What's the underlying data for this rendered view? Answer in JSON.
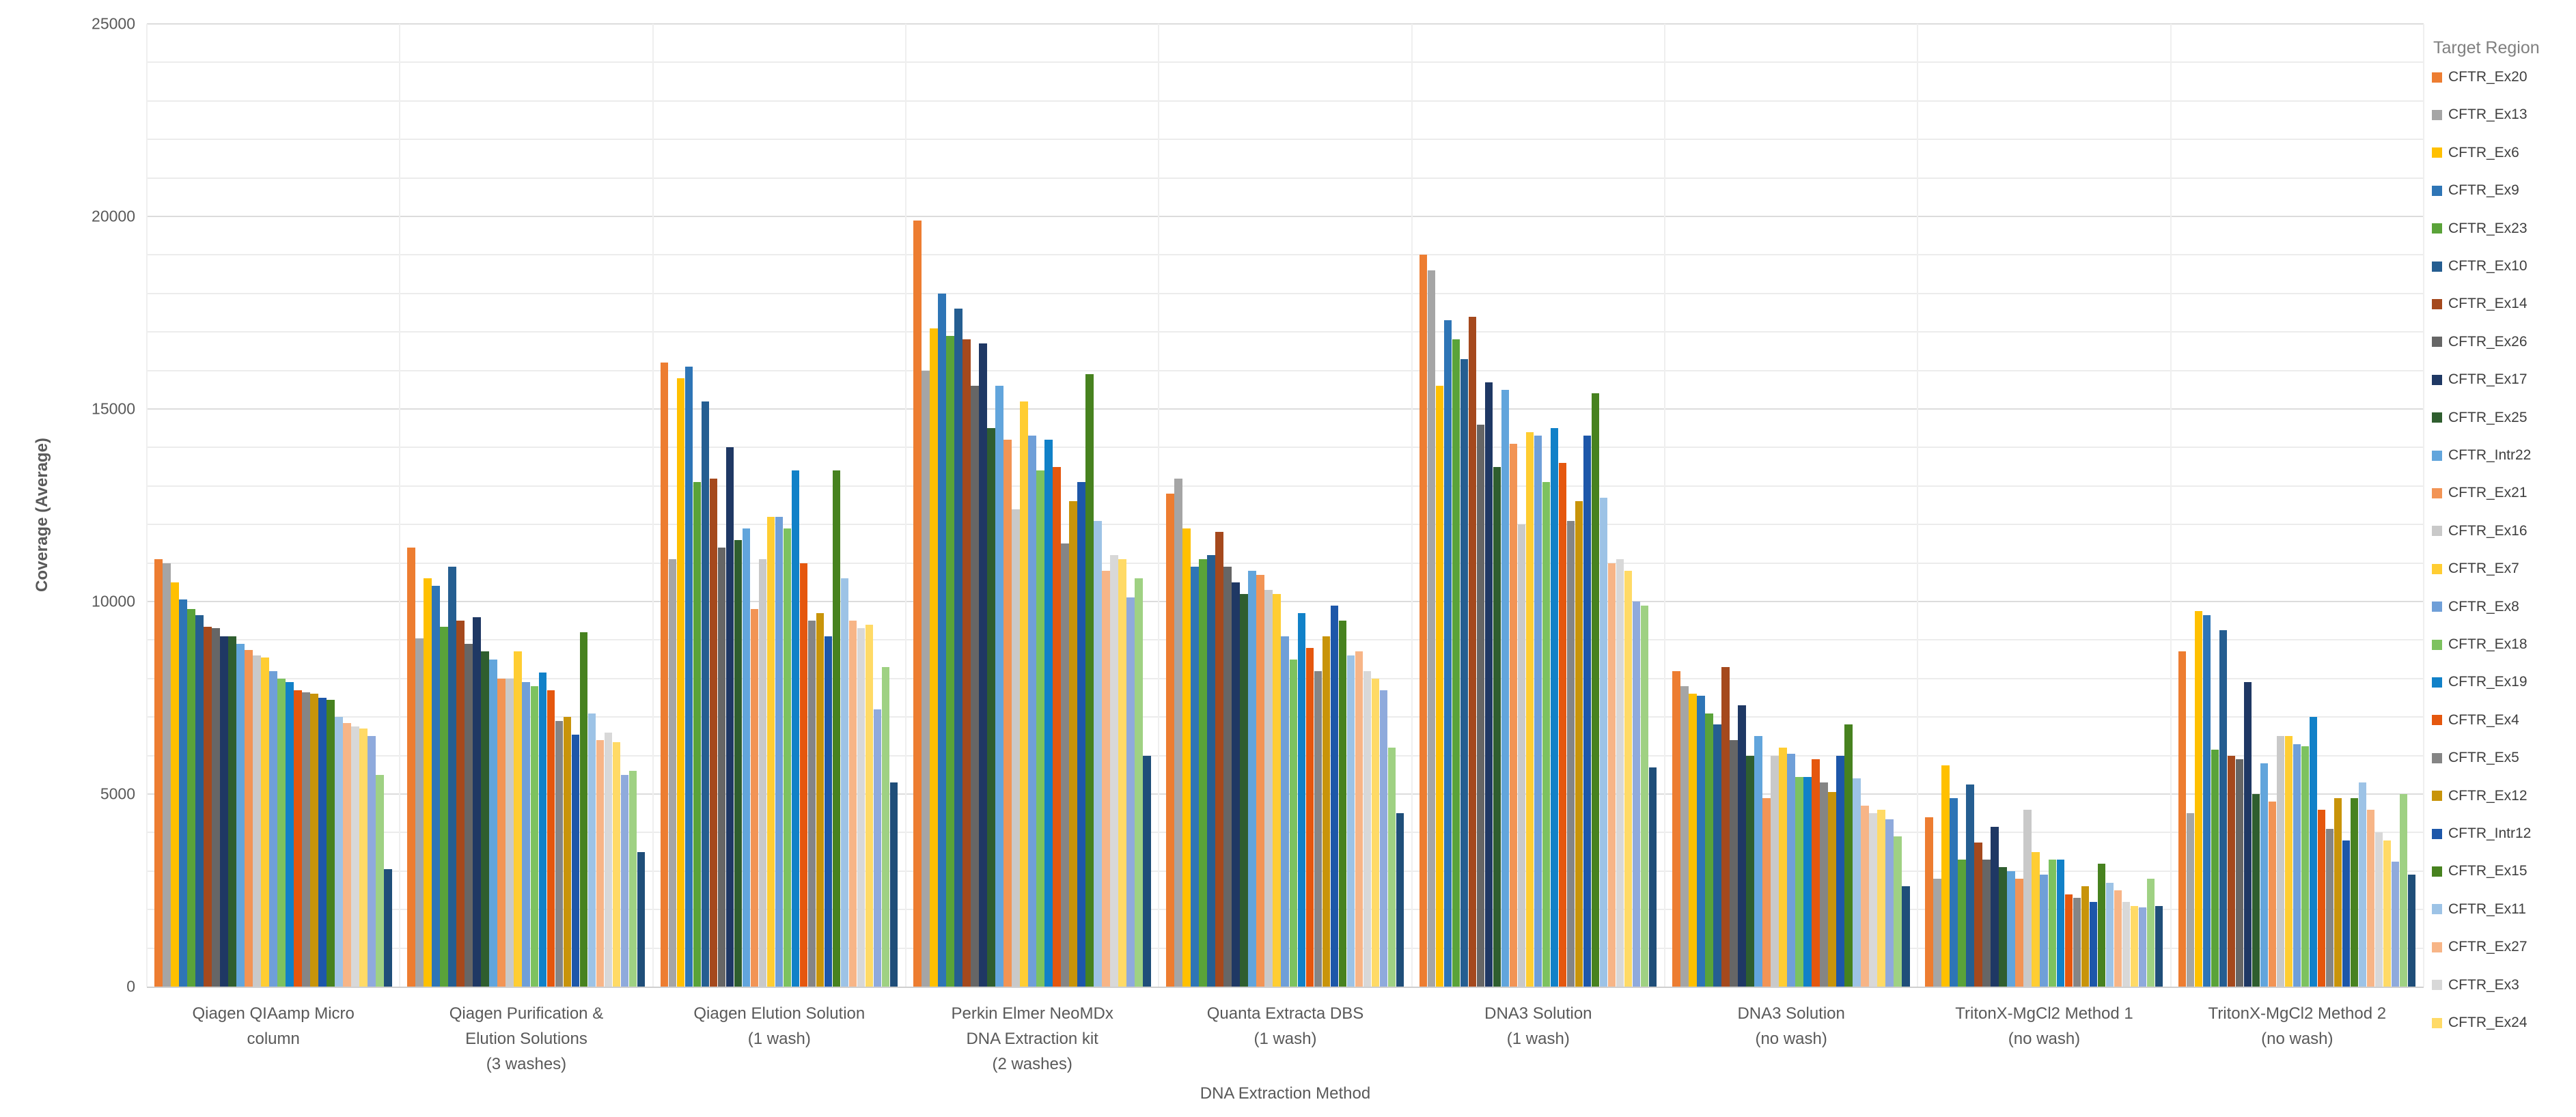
{
  "chart_data": {
    "type": "bar",
    "title": "",
    "xlabel": "DNA Extraction Method",
    "ylabel": "Coverage (Average)",
    "ylim": [
      0,
      25000
    ],
    "y_ticks": [
      0,
      5000,
      10000,
      15000,
      20000,
      25000
    ],
    "minor_grid_step": 1000,
    "grid": "horizontal minor gridlines every 1000, faint vertical lines at category boundaries",
    "legend_title": "Target Region",
    "legend_position": "right",
    "categories": [
      "Qiagen QIAamp Micro\ncolumn",
      "Qiagen Purification &\nElution Solutions\n(3 washes)",
      "Qiagen Elution Solution\n(1 wash)",
      "Perkin Elmer NeoMDx\nDNA Extraction kit\n(2 washes)",
      "Quanta Extracta DBS\n(1 wash)",
      "DNA3 Solution\n(1 wash)",
      "DNA3 Solution\n(no wash)",
      "TritonX-MgCl2 Method 1\n(no wash)",
      "TritonX-MgCl2 Method 2\n(no wash)"
    ],
    "series": [
      {
        "name": "CFTR_Ex20",
        "color": "#ED7D31",
        "in_legend": true,
        "values": [
          11100,
          11400,
          16200,
          19900,
          12800,
          19000,
          8200,
          4400,
          8700
        ]
      },
      {
        "name": "CFTR_Ex13",
        "color": "#A5A5A5",
        "in_legend": true,
        "values": [
          11000,
          9050,
          11100,
          16000,
          13200,
          18600,
          7800,
          2800,
          4500
        ]
      },
      {
        "name": "CFTR_Ex6",
        "color": "#FFC000",
        "in_legend": true,
        "values": [
          10500,
          10600,
          15800,
          17100,
          11900,
          15600,
          7600,
          5750,
          9750
        ]
      },
      {
        "name": "CFTR_Ex9",
        "color": "#2E75B6",
        "in_legend": true,
        "values": [
          10050,
          10400,
          16100,
          18000,
          10900,
          17300,
          7550,
          4900,
          9650
        ]
      },
      {
        "name": "CFTR_Ex23",
        "color": "#5AA339",
        "in_legend": true,
        "values": [
          9800,
          9350,
          13100,
          16900,
          11100,
          16800,
          7100,
          3300,
          6150
        ]
      },
      {
        "name": "CFTR_Ex10",
        "color": "#255E91",
        "in_legend": true,
        "values": [
          9650,
          10900,
          15200,
          17600,
          11200,
          16300,
          6800,
          5250,
          9250
        ]
      },
      {
        "name": "CFTR_Ex14",
        "color": "#A5491D",
        "in_legend": true,
        "values": [
          9350,
          9500,
          13200,
          16800,
          11800,
          17400,
          8300,
          3750,
          6000
        ]
      },
      {
        "name": "CFTR_Ex26",
        "color": "#666666",
        "in_legend": true,
        "values": [
          9300,
          8900,
          11400,
          15600,
          10900,
          14600,
          6400,
          3300,
          5900
        ]
      },
      {
        "name": "CFTR_Ex17",
        "color": "#1F3864",
        "in_legend": true,
        "values": [
          9100,
          9600,
          14000,
          16700,
          10500,
          15700,
          7300,
          4150,
          7900
        ]
      },
      {
        "name": "CFTR_Ex25",
        "color": "#2F5E2F",
        "in_legend": true,
        "values": [
          9100,
          8700,
          11600,
          14500,
          10200,
          13500,
          6000,
          3100,
          5000
        ]
      },
      {
        "name": "CFTR_Intr22",
        "color": "#62A5DC",
        "in_legend": true,
        "values": [
          8900,
          8500,
          11900,
          15600,
          10800,
          15500,
          6500,
          3000,
          5800
        ]
      },
      {
        "name": "CFTR_Ex21",
        "color": "#F29455",
        "in_legend": true,
        "values": [
          8750,
          8000,
          9800,
          14200,
          10700,
          14100,
          4900,
          2800,
          4800
        ]
      },
      {
        "name": "CFTR_Ex16",
        "color": "#C9C9C9",
        "in_legend": true,
        "values": [
          8600,
          8000,
          11100,
          12400,
          10300,
          12000,
          6000,
          4600,
          6500
        ]
      },
      {
        "name": "CFTR_Ex7",
        "color": "#FFCD32",
        "in_legend": true,
        "values": [
          8550,
          8700,
          12200,
          15200,
          10200,
          14400,
          6200,
          3500,
          6500
        ]
      },
      {
        "name": "CFTR_Ex8",
        "color": "#6F9FD8",
        "in_legend": true,
        "values": [
          8200,
          7900,
          12200,
          14300,
          9100,
          14300,
          6050,
          2900,
          6300
        ]
      },
      {
        "name": "CFTR_Ex18",
        "color": "#7DC25F",
        "in_legend": true,
        "values": [
          8000,
          7800,
          11900,
          13400,
          8500,
          13100,
          5450,
          3300,
          6250
        ]
      },
      {
        "name": "CFTR_Ex19",
        "color": "#1181C8",
        "in_legend": true,
        "values": [
          7900,
          8150,
          13400,
          14200,
          9700,
          14500,
          5450,
          3300,
          7000
        ]
      },
      {
        "name": "CFTR_Ex4",
        "color": "#E5570E",
        "in_legend": true,
        "values": [
          7700,
          7700,
          11000,
          13500,
          8800,
          13600,
          5900,
          2400,
          4600
        ]
      },
      {
        "name": "CFTR_Ex5",
        "color": "#858585",
        "in_legend": true,
        "values": [
          7650,
          6900,
          9500,
          11500,
          8200,
          12100,
          5300,
          2300,
          4100
        ]
      },
      {
        "name": "CFTR_Ex12",
        "color": "#C8940A",
        "in_legend": true,
        "values": [
          7600,
          7000,
          9700,
          12600,
          9100,
          12600,
          5050,
          2600,
          4900
        ]
      },
      {
        "name": "CFTR_Intr12",
        "color": "#1D57A9",
        "in_legend": true,
        "values": [
          7500,
          6550,
          9100,
          13100,
          9900,
          14300,
          6000,
          2200,
          3800
        ]
      },
      {
        "name": "CFTR_Ex15",
        "color": "#47821F",
        "in_legend": true,
        "values": [
          7450,
          9200,
          13400,
          15900,
          9500,
          15400,
          6800,
          3200,
          4900
        ]
      },
      {
        "name": "CFTR_Ex11",
        "color": "#9DC3E6",
        "in_legend": true,
        "values": [
          7000,
          7100,
          10600,
          12100,
          8600,
          12700,
          5400,
          2700,
          5300
        ]
      },
      {
        "name": "CFTR_Ex27",
        "color": "#F7B587",
        "in_legend": true,
        "values": [
          6850,
          6400,
          9500,
          10800,
          8700,
          11000,
          4700,
          2500,
          4600
        ]
      },
      {
        "name": "CFTR_Ex3",
        "color": "#D8D8D8",
        "in_legend": true,
        "values": [
          6750,
          6600,
          9300,
          11200,
          8200,
          11100,
          4500,
          2200,
          4000
        ]
      },
      {
        "name": "CFTR_Ex24",
        "color": "#FFDA66",
        "in_legend": true,
        "values": [
          6700,
          6350,
          9400,
          11100,
          8000,
          10800,
          4600,
          2100,
          3800
        ]
      },
      {
        "name": "",
        "color": "#8FAADC",
        "in_legend": false,
        "values": [
          6500,
          5500,
          7200,
          10100,
          7700,
          10000,
          4350,
          2050,
          3250
        ]
      },
      {
        "name": "",
        "color": "#9FD183",
        "in_legend": false,
        "values": [
          5500,
          5600,
          8300,
          10600,
          6200,
          9900,
          3900,
          2800,
          5000
        ]
      },
      {
        "name": "",
        "color": "#1F4E79",
        "in_legend": false,
        "values": [
          3050,
          3500,
          5300,
          6000,
          4500,
          5700,
          2600,
          2100,
          2900
        ]
      }
    ]
  }
}
